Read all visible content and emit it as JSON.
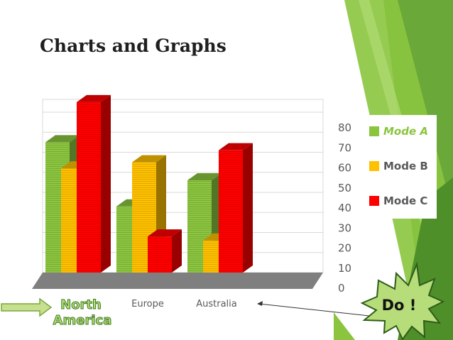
{
  "slide": {
    "title": "Charts and Graphs",
    "burst_label": "Do !",
    "colors": {
      "green": "#8bc53f",
      "yellow": "#ffc000",
      "red": "#e00000",
      "accent_green": "#77b33a",
      "dark_green": "#3c7a1c"
    }
  },
  "chart_data": {
    "type": "bar",
    "categories": [
      "North America",
      "Europe",
      "Australia"
    ],
    "series": [
      {
        "name": "Mode A",
        "values": [
          65,
          33,
          46
        ],
        "color": "#8bc53f"
      },
      {
        "name": "Mode B",
        "values": [
          52,
          55,
          16
        ],
        "color": "#ffc000"
      },
      {
        "name": "Mode C",
        "values": [
          85,
          18,
          61
        ],
        "color": "#ff0000"
      }
    ],
    "yticks": [
      "0",
      "10",
      "20",
      "30",
      "40",
      "50",
      "60",
      "70",
      "80"
    ],
    "ylim": [
      0,
      80
    ],
    "legend_position": "right",
    "grid": true
  }
}
